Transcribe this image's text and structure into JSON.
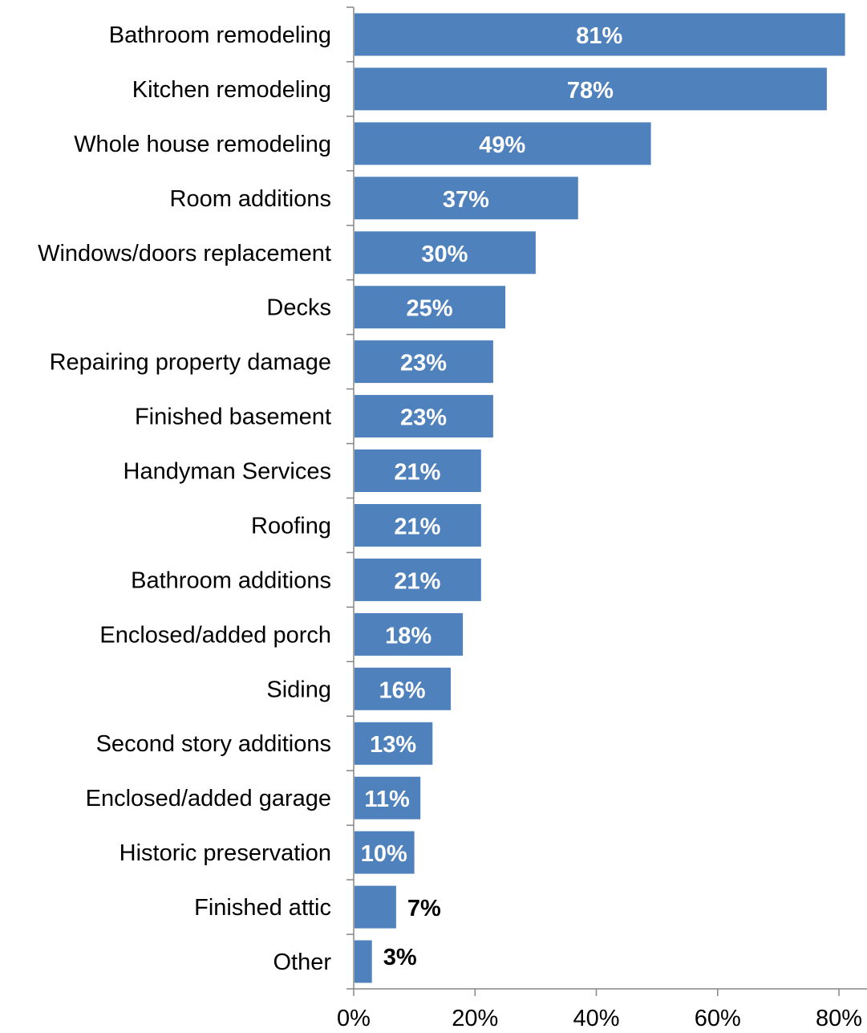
{
  "chart_data": {
    "type": "bar",
    "orientation": "horizontal",
    "categories": [
      "Bathroom remodeling",
      "Kitchen remodeling",
      "Whole house remodeling",
      "Room additions",
      "Windows/doors replacement",
      "Decks",
      "Repairing property damage",
      "Finished basement",
      "Handyman Services",
      "Roofing",
      "Bathroom additions",
      "Enclosed/added porch",
      "Siding",
      "Second story additions",
      "Enclosed/added garage",
      "Historic preservation",
      "Finished attic",
      "Other"
    ],
    "values": [
      81,
      78,
      49,
      37,
      30,
      25,
      23,
      23,
      21,
      21,
      21,
      18,
      16,
      13,
      11,
      10,
      7,
      3
    ],
    "value_labels": [
      "81%",
      "78%",
      "49%",
      "37%",
      "30%",
      "25%",
      "23%",
      "23%",
      "21%",
      "21%",
      "21%",
      "18%",
      "16%",
      "13%",
      "11%",
      "10%",
      "7%",
      "3%"
    ],
    "xlim": [
      0,
      84
    ],
    "x_ticks": [
      0,
      20,
      40,
      60,
      80
    ],
    "x_tick_labels": [
      "0%",
      "20%",
      "40%",
      "60%",
      "80%"
    ],
    "grid": false,
    "legend": "none",
    "colors": {
      "bar": "#4f81bd",
      "label_inside": "#ffffff",
      "label_outside": "#000000",
      "axis": "#868686"
    }
  }
}
